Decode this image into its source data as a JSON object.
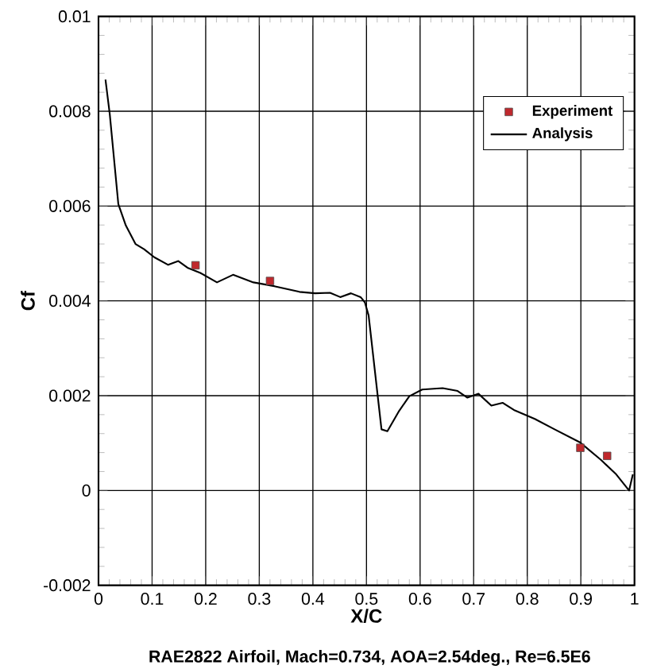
{
  "chart_data": {
    "type": "line",
    "xlabel": "X/C",
    "ylabel": "Cf",
    "annotations": [
      "RAE2822 Airfoil, Mach=0.734, AOA=2.54deg., Re=6.5E6"
    ],
    "xlim": [
      0,
      1
    ],
    "ylim": [
      -0.002,
      0.01
    ],
    "xticks": [
      0,
      0.1,
      0.2,
      0.3,
      0.4,
      0.5,
      0.6,
      0.7,
      0.8,
      0.9,
      1
    ],
    "yticks": [
      -0.002,
      0,
      0.002,
      0.004,
      0.006,
      0.008,
      0.01
    ],
    "grid": true,
    "legend": "top right",
    "series": [
      {
        "name": "Experiment",
        "type": "scatter",
        "marker": "square",
        "color": "#c0282d",
        "x": [
          0.181,
          0.32,
          0.899,
          0.949
        ],
        "values": [
          0.00475,
          0.00442,
          0.0009,
          0.00073
        ]
      },
      {
        "name": "Analysis",
        "marker": "none",
        "line_style": "solid",
        "color": "#000000",
        "x": [
          0.013,
          0.021,
          0.037,
          0.051,
          0.069,
          0.085,
          0.104,
          0.13,
          0.149,
          0.166,
          0.19,
          0.221,
          0.251,
          0.289,
          0.328,
          0.375,
          0.404,
          0.432,
          0.451,
          0.471,
          0.489,
          0.497,
          0.504,
          0.528,
          0.539,
          0.561,
          0.58,
          0.604,
          0.642,
          0.67,
          0.688,
          0.709,
          0.733,
          0.754,
          0.775,
          0.814,
          0.851,
          0.899,
          0.937,
          0.966,
          0.99,
          0.997
        ],
        "values": [
          0.00867,
          0.00794,
          0.00604,
          0.00559,
          0.0052,
          0.00509,
          0.00492,
          0.00476,
          0.00484,
          0.0047,
          0.00459,
          0.00439,
          0.00455,
          0.00439,
          0.00431,
          0.00419,
          0.00416,
          0.00417,
          0.00408,
          0.00416,
          0.00408,
          0.00397,
          0.00369,
          0.00129,
          0.00125,
          0.00168,
          0.00199,
          0.00213,
          0.00216,
          0.0021,
          0.00196,
          0.00204,
          0.00179,
          0.00185,
          0.0017,
          0.00151,
          0.00129,
          0.00101,
          0.00065,
          0.00034,
          0,
          0.00034
        ]
      }
    ]
  }
}
